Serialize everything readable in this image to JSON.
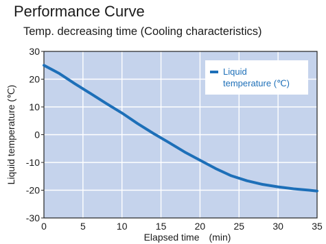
{
  "page": {
    "title": "Performance Curve"
  },
  "chart_data": {
    "type": "line",
    "title": "Temp. decreasing time  (Cooling characteristics)",
    "xlabel": "Elapsed time　(min)",
    "ylabel": "Liquid temperature  (℃)",
    "xlim": [
      0,
      35
    ],
    "ylim": [
      -30,
      30
    ],
    "xticks": [
      0,
      5,
      10,
      15,
      20,
      25,
      30,
      35
    ],
    "yticks": [
      30,
      20,
      10,
      0,
      -10,
      -20,
      -30
    ],
    "grid": true,
    "legend_position": "top-right",
    "colors": {
      "plot_background": "#c5d3ec",
      "grid": "#ffffff",
      "line": "#1d6fb8"
    },
    "series": [
      {
        "name": "Liquid temperature (℃)",
        "x": [
          0,
          1,
          2,
          4,
          6,
          8,
          10,
          12,
          14,
          16,
          18,
          20,
          22,
          24,
          26,
          28,
          30,
          32,
          34,
          35
        ],
        "y": [
          25,
          23.5,
          22,
          18.3,
          14.8,
          11.2,
          7.8,
          4,
          0.5,
          -2.8,
          -6.2,
          -9.2,
          -12.2,
          -14.8,
          -16.6,
          -17.9,
          -18.8,
          -19.5,
          -20,
          -20.3
        ]
      }
    ]
  }
}
